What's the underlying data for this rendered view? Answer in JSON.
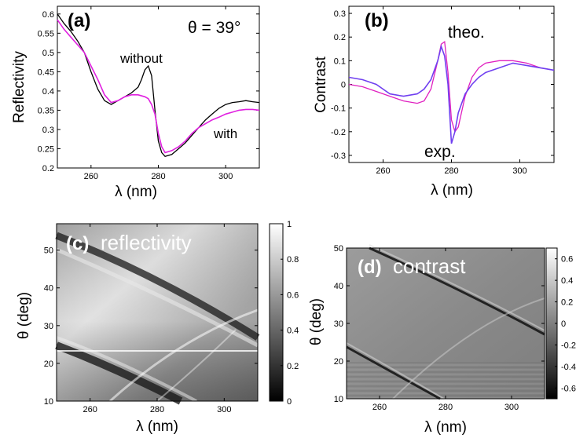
{
  "chart_data": [
    {
      "panel": "(a)",
      "type": "line",
      "xlabel": "λ (nm)",
      "ylabel": "Reflectivity",
      "xlim": [
        250,
        310
      ],
      "ylim": [
        0.2,
        0.62
      ],
      "xticks": [
        260,
        280,
        300
      ],
      "yticks": [
        0.2,
        0.25,
        0.3,
        0.35,
        0.4,
        0.45,
        0.5,
        0.55,
        0.6
      ],
      "annotation": "θ = 39°",
      "series": [
        {
          "name": "without",
          "color": "#000000",
          "points": [
            [
              250,
              0.6
            ],
            [
              252,
              0.575
            ],
            [
              254,
              0.555
            ],
            [
              256,
              0.53
            ],
            [
              258,
              0.5
            ],
            [
              260,
              0.45
            ],
            [
              262,
              0.405
            ],
            [
              264,
              0.375
            ],
            [
              266,
              0.365
            ],
            [
              268,
              0.375
            ],
            [
              270,
              0.385
            ],
            [
              272,
              0.395
            ],
            [
              274,
              0.41
            ],
            [
              275,
              0.43
            ],
            [
              276,
              0.455
            ],
            [
              277,
              0.465
            ],
            [
              278,
              0.44
            ],
            [
              279,
              0.35
            ],
            [
              280,
              0.27
            ],
            [
              281,
              0.24
            ],
            [
              282,
              0.23
            ],
            [
              284,
              0.235
            ],
            [
              286,
              0.25
            ],
            [
              288,
              0.265
            ],
            [
              290,
              0.285
            ],
            [
              292,
              0.305
            ],
            [
              294,
              0.325
            ],
            [
              296,
              0.34
            ],
            [
              298,
              0.355
            ],
            [
              300,
              0.365
            ],
            [
              302,
              0.37
            ],
            [
              304,
              0.372
            ],
            [
              306,
              0.375
            ],
            [
              308,
              0.372
            ],
            [
              310,
              0.37
            ]
          ]
        },
        {
          "name": "with",
          "color": "#e020e0",
          "points": [
            [
              250,
              0.585
            ],
            [
              252,
              0.56
            ],
            [
              254,
              0.54
            ],
            [
              256,
              0.52
            ],
            [
              258,
              0.5
            ],
            [
              260,
              0.465
            ],
            [
              262,
              0.43
            ],
            [
              264,
              0.39
            ],
            [
              266,
              0.37
            ],
            [
              268,
              0.375
            ],
            [
              270,
              0.385
            ],
            [
              272,
              0.39
            ],
            [
              274,
              0.39
            ],
            [
              276,
              0.385
            ],
            [
              277,
              0.38
            ],
            [
              278,
              0.365
            ],
            [
              279,
              0.34
            ],
            [
              280,
              0.29
            ],
            [
              281,
              0.255
            ],
            [
              282,
              0.24
            ],
            [
              284,
              0.245
            ],
            [
              286,
              0.255
            ],
            [
              288,
              0.27
            ],
            [
              290,
              0.29
            ],
            [
              292,
              0.305
            ],
            [
              294,
              0.315
            ],
            [
              296,
              0.325
            ],
            [
              298,
              0.332
            ],
            [
              300,
              0.34
            ],
            [
              302,
              0.345
            ],
            [
              304,
              0.35
            ],
            [
              306,
              0.352
            ],
            [
              308,
              0.352
            ],
            [
              310,
              0.35
            ]
          ]
        }
      ]
    },
    {
      "panel": "(b)",
      "type": "line",
      "xlabel": "λ (nm)",
      "ylabel": "Contrast",
      "xlim": [
        250,
        310
      ],
      "ylim": [
        -0.33,
        0.33
      ],
      "xticks": [
        260,
        280,
        300
      ],
      "yticks": [
        -0.3,
        -0.2,
        -0.1,
        0,
        0.1,
        0.2,
        0.3
      ],
      "series": [
        {
          "name": "theo.",
          "color": "#e020c0",
          "points": [
            [
              250,
              0.0
            ],
            [
              254,
              -0.01
            ],
            [
              258,
              -0.03
            ],
            [
              262,
              -0.05
            ],
            [
              266,
              -0.07
            ],
            [
              270,
              -0.08
            ],
            [
              272,
              -0.07
            ],
            [
              274,
              -0.02
            ],
            [
              276,
              0.1
            ],
            [
              277,
              0.17
            ],
            [
              278,
              0.18
            ],
            [
              279,
              0.05
            ],
            [
              280,
              -0.15
            ],
            [
              281,
              -0.2
            ],
            [
              282,
              -0.18
            ],
            [
              284,
              -0.05
            ],
            [
              286,
              0.03
            ],
            [
              288,
              0.07
            ],
            [
              290,
              0.09
            ],
            [
              294,
              0.1
            ],
            [
              298,
              0.1
            ],
            [
              302,
              0.09
            ],
            [
              306,
              0.07
            ],
            [
              310,
              0.06
            ]
          ]
        },
        {
          "name": "exp.",
          "color": "#7040f0",
          "points": [
            [
              250,
              0.03
            ],
            [
              254,
              0.02
            ],
            [
              258,
              0.0
            ],
            [
              262,
              -0.04
            ],
            [
              266,
              -0.05
            ],
            [
              270,
              -0.04
            ],
            [
              272,
              -0.02
            ],
            [
              274,
              0.02
            ],
            [
              276,
              0.1
            ],
            [
              277,
              0.16
            ],
            [
              278,
              0.12
            ],
            [
              279,
              0.0
            ],
            [
              280,
              -0.25
            ],
            [
              281,
              -0.2
            ],
            [
              282,
              -0.12
            ],
            [
              284,
              -0.04
            ],
            [
              286,
              0.0
            ],
            [
              288,
              0.03
            ],
            [
              290,
              0.05
            ],
            [
              294,
              0.07
            ],
            [
              298,
              0.09
            ],
            [
              302,
              0.08
            ],
            [
              306,
              0.07
            ],
            [
              310,
              0.06
            ]
          ]
        }
      ]
    },
    {
      "panel": "(c)",
      "type": "heatmap",
      "title": "reflectivity",
      "xlabel": "λ (nm)",
      "ylabel": "θ (deg)",
      "xlim": [
        250,
        310
      ],
      "ylim": [
        10,
        57
      ],
      "xticks": [
        260,
        280,
        300
      ],
      "yticks": [
        10,
        20,
        30,
        40,
        50
      ],
      "colorbar": {
        "range": [
          0,
          1
        ],
        "ticks": [
          0,
          0.2,
          0.4,
          0.6,
          0.8,
          1
        ]
      }
    },
    {
      "panel": "(d)",
      "type": "heatmap",
      "title": "contrast",
      "xlabel": "λ (nm)",
      "ylabel": "θ (deg)",
      "xlim": [
        250,
        310
      ],
      "ylim": [
        10,
        50
      ],
      "xticks": [
        260,
        280,
        300
      ],
      "yticks": [
        10,
        20,
        30,
        40,
        50
      ],
      "colorbar": {
        "range": [
          -0.7,
          0.7
        ],
        "ticks": [
          -0.6,
          -0.4,
          -0.2,
          0,
          0.2,
          0.4,
          0.6
        ]
      }
    }
  ],
  "labels": {
    "a_tag": "(a)",
    "b_tag": "(b)",
    "c_tag": "(c)",
    "d_tag": "(d)",
    "a_theta": "θ = 39°",
    "a_without": "without",
    "a_with": "with",
    "b_theo": "theo.",
    "b_exp": "exp.",
    "c_word": "reflectivity",
    "d_word": "contrast",
    "xlabel": "λ (nm)",
    "a_ylabel": "Reflectivity",
    "b_ylabel": "Contrast",
    "c_ylabel": "θ (deg)",
    "d_ylabel": "θ (deg)"
  }
}
